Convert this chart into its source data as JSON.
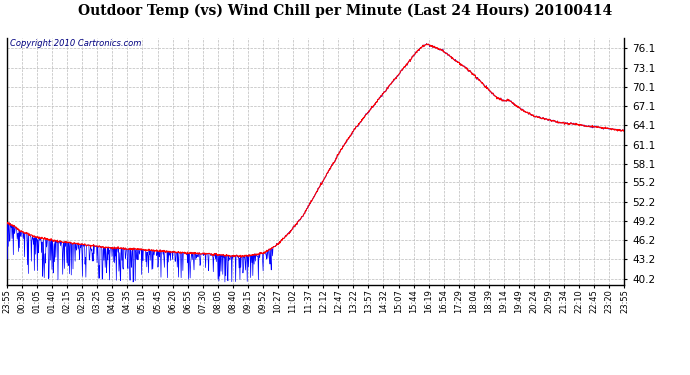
{
  "title": "Outdoor Temp (vs) Wind Chill per Minute (Last 24 Hours) 20100414",
  "copyright": "Copyright 2010 Cartronics.com",
  "background_color": "#ffffff",
  "plot_bg_color": "#ffffff",
  "grid_color": "#bbbbbb",
  "line_color_red": "#ff0000",
  "line_color_blue": "#0000ff",
  "yticks": [
    40.2,
    43.2,
    46.2,
    49.2,
    52.2,
    55.2,
    58.1,
    61.1,
    64.1,
    67.1,
    70.1,
    73.1,
    76.1
  ],
  "ymin": 39.2,
  "ymax": 77.8,
  "xlabel_fontsize": 6.0,
  "ylabel_fontsize": 7.5,
  "title_fontsize": 10,
  "xtick_labels": [
    "23:55",
    "00:30",
    "01:05",
    "01:40",
    "02:15",
    "02:50",
    "03:25",
    "04:00",
    "04:35",
    "05:10",
    "05:45",
    "06:20",
    "06:55",
    "07:30",
    "08:05",
    "08:40",
    "09:15",
    "09:52",
    "10:27",
    "11:02",
    "11:37",
    "12:12",
    "12:47",
    "13:22",
    "13:57",
    "14:32",
    "15:07",
    "15:44",
    "16:19",
    "16:54",
    "17:29",
    "18:04",
    "18:39",
    "19:14",
    "19:49",
    "20:24",
    "20:59",
    "21:34",
    "22:10",
    "22:45",
    "23:20",
    "23:55"
  ],
  "red_keypoints": [
    [
      0,
      49.0
    ],
    [
      36,
      47.5
    ],
    [
      60,
      46.8
    ],
    [
      120,
      46.0
    ],
    [
      180,
      45.5
    ],
    [
      240,
      45.0
    ],
    [
      300,
      44.8
    ],
    [
      360,
      44.5
    ],
    [
      420,
      44.2
    ],
    [
      480,
      44.0
    ],
    [
      510,
      43.8
    ],
    [
      540,
      43.7
    ],
    [
      570,
      43.8
    ],
    [
      600,
      44.2
    ],
    [
      630,
      45.5
    ],
    [
      660,
      47.5
    ],
    [
      690,
      50.0
    ],
    [
      720,
      53.5
    ],
    [
      750,
      57.0
    ],
    [
      780,
      60.5
    ],
    [
      810,
      63.5
    ],
    [
      840,
      66.0
    ],
    [
      870,
      68.5
    ],
    [
      900,
      71.0
    ],
    [
      930,
      73.5
    ],
    [
      950,
      75.2
    ],
    [
      960,
      76.0
    ],
    [
      970,
      76.5
    ],
    [
      980,
      76.8
    ],
    [
      990,
      76.5
    ],
    [
      1000,
      76.2
    ],
    [
      1010,
      76.0
    ],
    [
      1020,
      75.5
    ],
    [
      1030,
      75.0
    ],
    [
      1050,
      74.0
    ],
    [
      1080,
      72.5
    ],
    [
      1110,
      70.5
    ],
    [
      1140,
      68.5
    ],
    [
      1160,
      67.8
    ],
    [
      1170,
      68.2
    ],
    [
      1180,
      67.5
    ],
    [
      1200,
      66.5
    ],
    [
      1230,
      65.5
    ],
    [
      1260,
      65.0
    ],
    [
      1290,
      64.5
    ],
    [
      1320,
      64.3
    ],
    [
      1350,
      64.0
    ],
    [
      1380,
      63.8
    ],
    [
      1410,
      63.5
    ],
    [
      1439,
      63.2
    ]
  ]
}
